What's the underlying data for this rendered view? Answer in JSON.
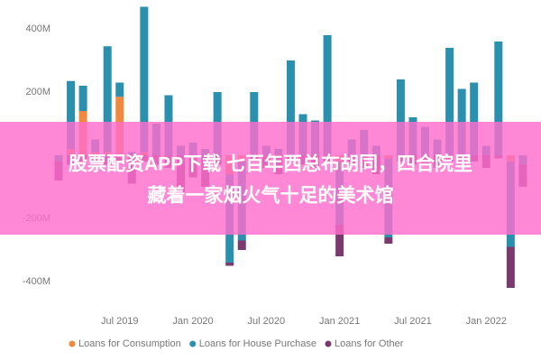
{
  "chart_data": {
    "type": "stacked-bar",
    "categories": [
      null,
      null,
      null,
      null,
      null,
      "Jul 2019",
      null,
      null,
      null,
      null,
      null,
      "Jan 2020",
      null,
      null,
      null,
      null,
      null,
      "Jul 2020",
      null,
      null,
      null,
      null,
      null,
      "Jan 2021",
      null,
      null,
      null,
      null,
      null,
      "Jul 2021",
      null,
      null,
      null,
      null,
      null,
      "Jan 2022",
      null,
      null,
      null
    ],
    "series": [
      {
        "name": "Loans for Consumption",
        "color": "#f0883e",
        "values": [
          0,
          20,
          140,
          10,
          10,
          185,
          0,
          10,
          0,
          0,
          0,
          -10,
          0,
          0,
          -60,
          -20,
          0,
          0,
          0,
          0,
          0,
          0,
          0,
          -20,
          0,
          0,
          0,
          -10,
          0,
          0,
          0,
          0,
          0,
          0,
          0,
          0,
          0,
          -20,
          0
        ]
      },
      {
        "name": "Loans for House Purchase",
        "color": "#2b8fae",
        "values": [
          -20,
          215,
          80,
          40,
          335,
          45,
          10,
          460,
          100,
          190,
          30,
          40,
          20,
          200,
          -280,
          -250,
          200,
          30,
          20,
          300,
          130,
          110,
          380,
          -200,
          50,
          80,
          30,
          -250,
          240,
          120,
          90,
          50,
          340,
          210,
          230,
          30,
          360,
          -270,
          -30
        ]
      },
      {
        "name": "Loans for Other",
        "color": "#7a3a6e",
        "values": [
          -60,
          -30,
          -20,
          -40,
          -30,
          -20,
          -90,
          -20,
          -30,
          -40,
          -120,
          -60,
          -100,
          -30,
          -10,
          -30,
          -20,
          -40,
          -60,
          -20,
          -30,
          -40,
          -20,
          -100,
          -30,
          -40,
          -60,
          -20,
          -20,
          -30,
          -30,
          -40,
          -20,
          -30,
          -20,
          -40,
          -10,
          -130,
          -70
        ]
      }
    ],
    "ylim": [
      -470,
      470
    ],
    "yticks": [
      {
        "value": 400,
        "label": "400M"
      },
      {
        "value": 200,
        "label": "200M"
      },
      {
        "value": -200,
        "label": "-200M"
      },
      {
        "value": -400,
        "label": "-400M"
      }
    ],
    "legend": "bottom"
  },
  "overlay": {
    "lines": [
      "股票配资APP下载 七百年西总布胡同，四合院里",
      "藏着一家烟火气十足的美术馆"
    ]
  }
}
